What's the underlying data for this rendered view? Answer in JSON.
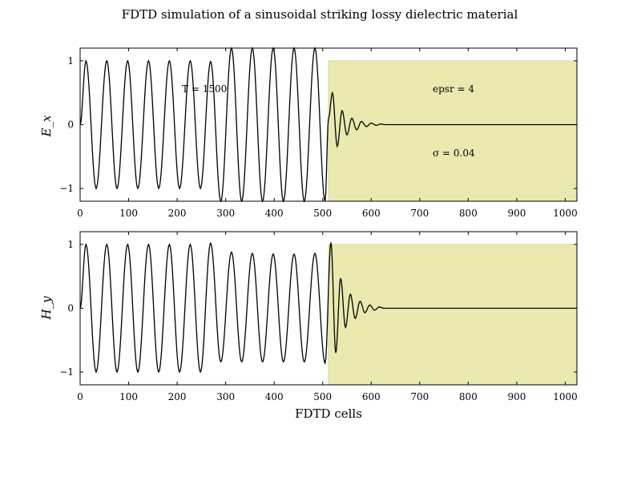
{
  "chart_data": [
    {
      "type": "line",
      "title": "FDTD simulation of a sinusoidal striking lossy dielectric material",
      "ylabel": "E_x",
      "xlabel": "",
      "xlim": [
        0,
        1024
      ],
      "ylim": [
        -1.2,
        1.2
      ],
      "x_ticks": [
        0,
        100,
        200,
        300,
        400,
        500,
        600,
        700,
        800,
        900,
        1000
      ],
      "y_ticks": [
        -1,
        0,
        1
      ],
      "grid": false,
      "annotations": [
        "T = 1500",
        "epsr = 4",
        "σ = 0.04"
      ],
      "shaded_region": {
        "x": [
          512,
          1024
        ],
        "y": [
          -1.2,
          1.0
        ],
        "color": "#eaeab0"
      },
      "series": [
        {
          "color": "#000000",
          "points": [
            [
              0,
              0
            ],
            [
              12,
              1.0
            ],
            [
              33,
              -1.0
            ],
            [
              55,
              1.0
            ],
            [
              76,
              -1.0
            ],
            [
              98,
              1.0
            ],
            [
              119,
              -1.0
            ],
            [
              141,
              1.0
            ],
            [
              162,
              -1.0
            ],
            [
              184,
              1.0
            ],
            [
              205,
              -1.0
            ],
            [
              227,
              1.0
            ],
            [
              248,
              -1.0
            ],
            [
              269,
              0.99
            ],
            [
              290,
              -1.2
            ],
            [
              312,
              1.2
            ],
            [
              333,
              -1.2
            ],
            [
              355,
              1.2
            ],
            [
              376,
              -1.2
            ],
            [
              398,
              1.2
            ],
            [
              419,
              -1.2
            ],
            [
              441,
              1.2
            ],
            [
              462,
              -1.2
            ],
            [
              484,
              1.2
            ],
            [
              505,
              -1.2
            ],
            [
              512,
              0.1
            ],
            [
              520,
              0.5
            ],
            [
              530,
              -0.34
            ],
            [
              540,
              0.22
            ],
            [
              550,
              -0.16
            ],
            [
              560,
              0.1
            ],
            [
              570,
              -0.08
            ],
            [
              580,
              0.05
            ],
            [
              590,
              -0.03
            ],
            [
              600,
              0.025
            ],
            [
              610,
              -0.01
            ],
            [
              620,
              0.01
            ],
            [
              630,
              0
            ],
            [
              1024,
              0
            ]
          ]
        }
      ]
    },
    {
      "type": "line",
      "title": "",
      "ylabel": "H_y",
      "xlabel": "FDTD cells",
      "xlim": [
        0,
        1024
      ],
      "ylim": [
        -1.2,
        1.2
      ],
      "x_ticks": [
        0,
        100,
        200,
        300,
        400,
        500,
        600,
        700,
        800,
        900,
        1000
      ],
      "y_ticks": [
        -1,
        0,
        1
      ],
      "grid": false,
      "shaded_region": {
        "x": [
          512,
          1024
        ],
        "y": [
          -1.2,
          1.0
        ],
        "color": "#eaeab0"
      },
      "series": [
        {
          "color": "#000000",
          "points": [
            [
              0,
              0
            ],
            [
              12,
              1.0
            ],
            [
              33,
              -1.0
            ],
            [
              55,
              1.0
            ],
            [
              76,
              -1.0
            ],
            [
              98,
              1.0
            ],
            [
              119,
              -1.0
            ],
            [
              141,
              1.0
            ],
            [
              162,
              -1.0
            ],
            [
              184,
              1.0
            ],
            [
              205,
              -1.0
            ],
            [
              227,
              1.0
            ],
            [
              248,
              -1.0
            ],
            [
              269,
              1.02
            ],
            [
              290,
              -0.84
            ],
            [
              312,
              0.88
            ],
            [
              333,
              -0.84
            ],
            [
              355,
              0.86
            ],
            [
              376,
              -0.84
            ],
            [
              398,
              0.85
            ],
            [
              419,
              -0.84
            ],
            [
              441,
              0.85
            ],
            [
              462,
              -0.84
            ],
            [
              484,
              0.86
            ],
            [
              505,
              -0.86
            ],
            [
              517,
              1.03
            ],
            [
              527,
              -0.7
            ],
            [
              537,
              0.47
            ],
            [
              547,
              -0.3
            ],
            [
              557,
              0.22
            ],
            [
              567,
              -0.16
            ],
            [
              577,
              0.11
            ],
            [
              587,
              -0.07
            ],
            [
              597,
              0.05
            ],
            [
              607,
              -0.03
            ],
            [
              617,
              0.02
            ],
            [
              627,
              0
            ],
            [
              1024,
              0
            ]
          ]
        }
      ]
    }
  ]
}
